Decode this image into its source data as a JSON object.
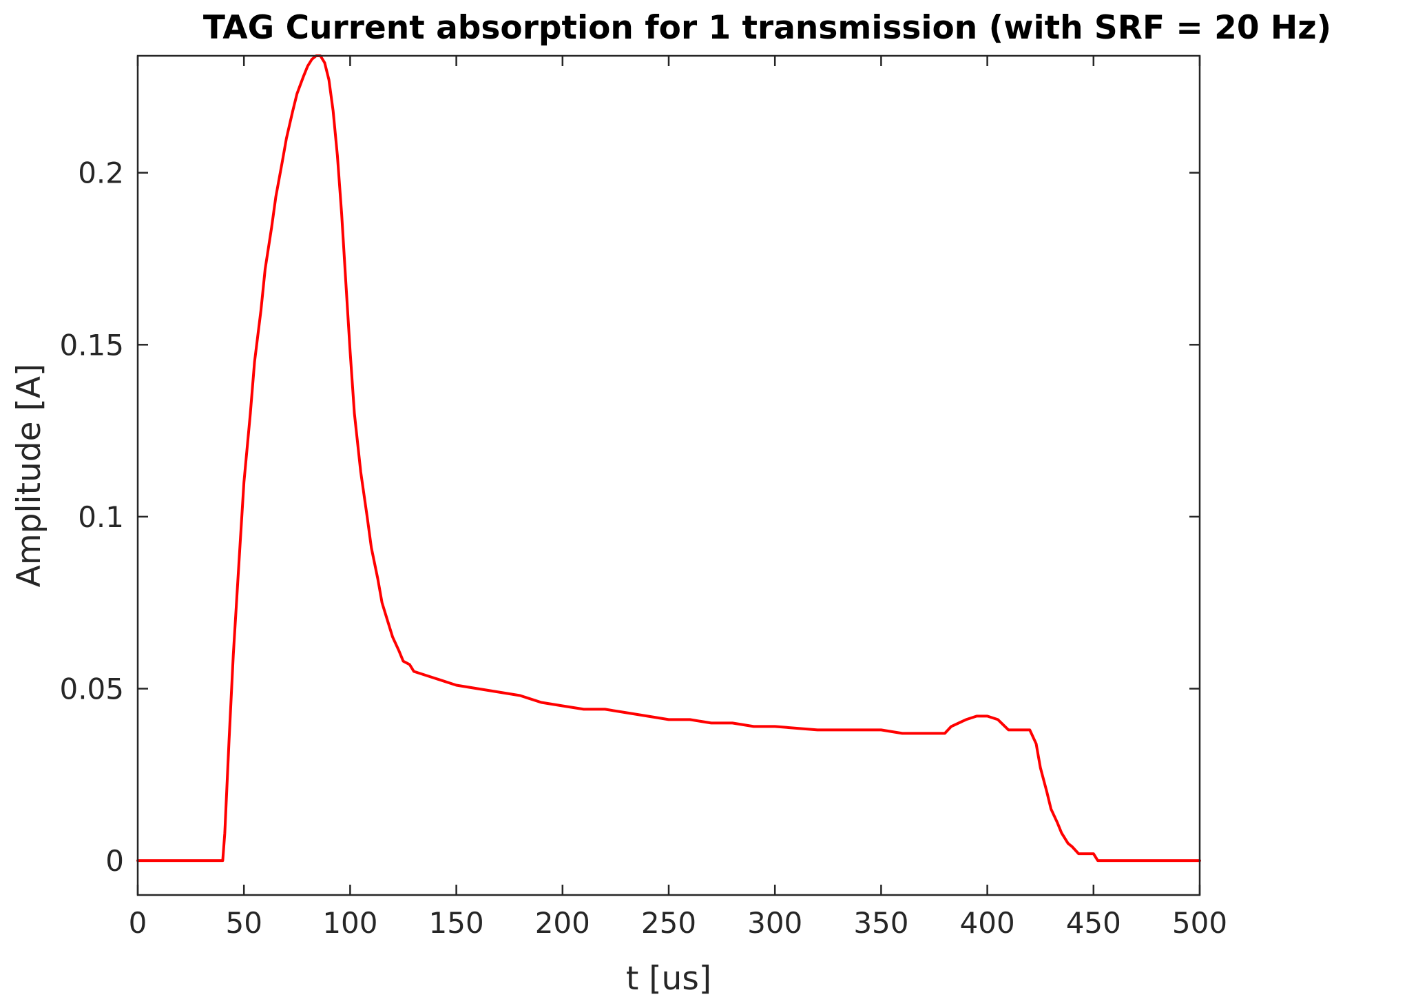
{
  "chart_data": {
    "type": "line",
    "title": "TAG Current absorption for 1 transmission (with SRF = 20 Hz)",
    "xlabel": "t [us]",
    "ylabel": "Amplitude [A]",
    "xlim": [
      0,
      500
    ],
    "ylim": [
      -0.01,
      0.234
    ],
    "grid": false,
    "xticks": [
      0,
      50,
      100,
      150,
      200,
      250,
      300,
      350,
      400,
      450,
      500
    ],
    "xtick_labels": [
      "0",
      "50",
      "100",
      "150",
      "200",
      "250",
      "300",
      "350",
      "400",
      "450",
      "500"
    ],
    "yticks": [
      0,
      0.05,
      0.1,
      0.15,
      0.2
    ],
    "ytick_labels": [
      "0",
      "0.05",
      "0.1",
      "0.15",
      "0.2"
    ],
    "series": [
      {
        "color": "#ff0000",
        "x": [
          0,
          40,
          41,
          43,
          45,
          48,
          50,
          53,
          55,
          58,
          60,
          63,
          65,
          68,
          70,
          73,
          75,
          78,
          80,
          82,
          84,
          86,
          88,
          90,
          92,
          94,
          96,
          98,
          100,
          102,
          105,
          108,
          110,
          113,
          115,
          118,
          120,
          123,
          125,
          128,
          130,
          135,
          140,
          150,
          160,
          170,
          180,
          190,
          200,
          210,
          220,
          230,
          240,
          250,
          260,
          270,
          280,
          290,
          300,
          320,
          340,
          350,
          360,
          370,
          380,
          383,
          390,
          395,
          400,
          405,
          410,
          415,
          420,
          423,
          425,
          428,
          430,
          433,
          435,
          438,
          440,
          443,
          445,
          450,
          452,
          455,
          460,
          480,
          500
        ],
        "y": [
          0,
          0,
          0.008,
          0.035,
          0.06,
          0.09,
          0.11,
          0.13,
          0.145,
          0.16,
          0.172,
          0.184,
          0.193,
          0.203,
          0.21,
          0.218,
          0.223,
          0.228,
          0.231,
          0.233,
          0.234,
          0.234,
          0.232,
          0.227,
          0.218,
          0.205,
          0.188,
          0.168,
          0.148,
          0.13,
          0.113,
          0.1,
          0.091,
          0.082,
          0.075,
          0.069,
          0.065,
          0.061,
          0.058,
          0.057,
          0.055,
          0.054,
          0.053,
          0.051,
          0.05,
          0.049,
          0.048,
          0.046,
          0.045,
          0.044,
          0.044,
          0.043,
          0.042,
          0.041,
          0.041,
          0.04,
          0.04,
          0.039,
          0.039,
          0.038,
          0.038,
          0.038,
          0.037,
          0.037,
          0.037,
          0.039,
          0.041,
          0.042,
          0.042,
          0.041,
          0.038,
          0.038,
          0.038,
          0.034,
          0.027,
          0.02,
          0.015,
          0.011,
          0.008,
          0.005,
          0.004,
          0.002,
          0.002,
          0.002,
          0.0,
          0.0,
          0,
          0,
          0
        ]
      }
    ]
  }
}
